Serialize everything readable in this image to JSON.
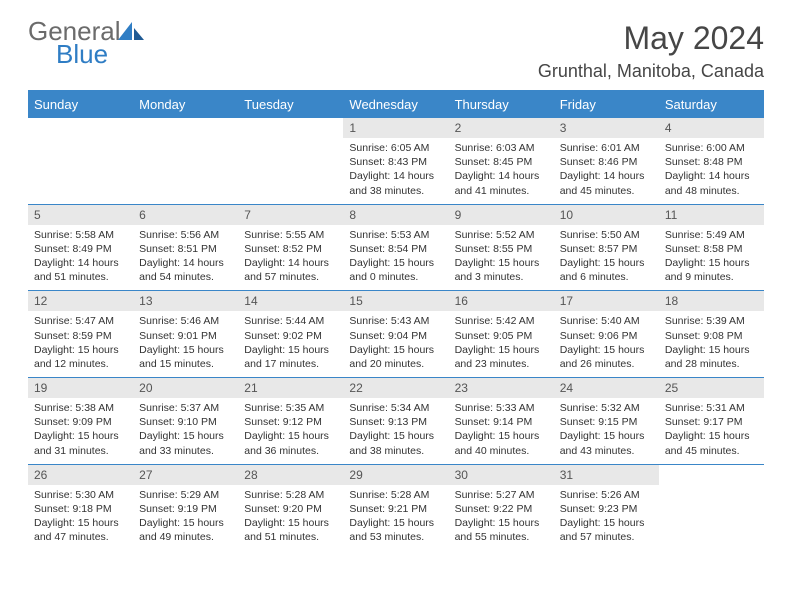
{
  "brand": {
    "part1": "General",
    "part2": "Blue"
  },
  "title": "May 2024",
  "location": "Grunthal, Manitoba, Canada",
  "colors": {
    "header_bg": "#3a86c8",
    "daynum_bg": "#e8e8e8",
    "text": "#333333",
    "title_text": "#464646"
  },
  "dayNames": [
    "Sunday",
    "Monday",
    "Tuesday",
    "Wednesday",
    "Thursday",
    "Friday",
    "Saturday"
  ],
  "weeks": [
    [
      {
        "num": "",
        "sunrise": "",
        "sunset": "",
        "daylight": ""
      },
      {
        "num": "",
        "sunrise": "",
        "sunset": "",
        "daylight": ""
      },
      {
        "num": "",
        "sunrise": "",
        "sunset": "",
        "daylight": ""
      },
      {
        "num": "1",
        "sunrise": "Sunrise: 6:05 AM",
        "sunset": "Sunset: 8:43 PM",
        "daylight": "Daylight: 14 hours and 38 minutes."
      },
      {
        "num": "2",
        "sunrise": "Sunrise: 6:03 AM",
        "sunset": "Sunset: 8:45 PM",
        "daylight": "Daylight: 14 hours and 41 minutes."
      },
      {
        "num": "3",
        "sunrise": "Sunrise: 6:01 AM",
        "sunset": "Sunset: 8:46 PM",
        "daylight": "Daylight: 14 hours and 45 minutes."
      },
      {
        "num": "4",
        "sunrise": "Sunrise: 6:00 AM",
        "sunset": "Sunset: 8:48 PM",
        "daylight": "Daylight: 14 hours and 48 minutes."
      }
    ],
    [
      {
        "num": "5",
        "sunrise": "Sunrise: 5:58 AM",
        "sunset": "Sunset: 8:49 PM",
        "daylight": "Daylight: 14 hours and 51 minutes."
      },
      {
        "num": "6",
        "sunrise": "Sunrise: 5:56 AM",
        "sunset": "Sunset: 8:51 PM",
        "daylight": "Daylight: 14 hours and 54 minutes."
      },
      {
        "num": "7",
        "sunrise": "Sunrise: 5:55 AM",
        "sunset": "Sunset: 8:52 PM",
        "daylight": "Daylight: 14 hours and 57 minutes."
      },
      {
        "num": "8",
        "sunrise": "Sunrise: 5:53 AM",
        "sunset": "Sunset: 8:54 PM",
        "daylight": "Daylight: 15 hours and 0 minutes."
      },
      {
        "num": "9",
        "sunrise": "Sunrise: 5:52 AM",
        "sunset": "Sunset: 8:55 PM",
        "daylight": "Daylight: 15 hours and 3 minutes."
      },
      {
        "num": "10",
        "sunrise": "Sunrise: 5:50 AM",
        "sunset": "Sunset: 8:57 PM",
        "daylight": "Daylight: 15 hours and 6 minutes."
      },
      {
        "num": "11",
        "sunrise": "Sunrise: 5:49 AM",
        "sunset": "Sunset: 8:58 PM",
        "daylight": "Daylight: 15 hours and 9 minutes."
      }
    ],
    [
      {
        "num": "12",
        "sunrise": "Sunrise: 5:47 AM",
        "sunset": "Sunset: 8:59 PM",
        "daylight": "Daylight: 15 hours and 12 minutes."
      },
      {
        "num": "13",
        "sunrise": "Sunrise: 5:46 AM",
        "sunset": "Sunset: 9:01 PM",
        "daylight": "Daylight: 15 hours and 15 minutes."
      },
      {
        "num": "14",
        "sunrise": "Sunrise: 5:44 AM",
        "sunset": "Sunset: 9:02 PM",
        "daylight": "Daylight: 15 hours and 17 minutes."
      },
      {
        "num": "15",
        "sunrise": "Sunrise: 5:43 AM",
        "sunset": "Sunset: 9:04 PM",
        "daylight": "Daylight: 15 hours and 20 minutes."
      },
      {
        "num": "16",
        "sunrise": "Sunrise: 5:42 AM",
        "sunset": "Sunset: 9:05 PM",
        "daylight": "Daylight: 15 hours and 23 minutes."
      },
      {
        "num": "17",
        "sunrise": "Sunrise: 5:40 AM",
        "sunset": "Sunset: 9:06 PM",
        "daylight": "Daylight: 15 hours and 26 minutes."
      },
      {
        "num": "18",
        "sunrise": "Sunrise: 5:39 AM",
        "sunset": "Sunset: 9:08 PM",
        "daylight": "Daylight: 15 hours and 28 minutes."
      }
    ],
    [
      {
        "num": "19",
        "sunrise": "Sunrise: 5:38 AM",
        "sunset": "Sunset: 9:09 PM",
        "daylight": "Daylight: 15 hours and 31 minutes."
      },
      {
        "num": "20",
        "sunrise": "Sunrise: 5:37 AM",
        "sunset": "Sunset: 9:10 PM",
        "daylight": "Daylight: 15 hours and 33 minutes."
      },
      {
        "num": "21",
        "sunrise": "Sunrise: 5:35 AM",
        "sunset": "Sunset: 9:12 PM",
        "daylight": "Daylight: 15 hours and 36 minutes."
      },
      {
        "num": "22",
        "sunrise": "Sunrise: 5:34 AM",
        "sunset": "Sunset: 9:13 PM",
        "daylight": "Daylight: 15 hours and 38 minutes."
      },
      {
        "num": "23",
        "sunrise": "Sunrise: 5:33 AM",
        "sunset": "Sunset: 9:14 PM",
        "daylight": "Daylight: 15 hours and 40 minutes."
      },
      {
        "num": "24",
        "sunrise": "Sunrise: 5:32 AM",
        "sunset": "Sunset: 9:15 PM",
        "daylight": "Daylight: 15 hours and 43 minutes."
      },
      {
        "num": "25",
        "sunrise": "Sunrise: 5:31 AM",
        "sunset": "Sunset: 9:17 PM",
        "daylight": "Daylight: 15 hours and 45 minutes."
      }
    ],
    [
      {
        "num": "26",
        "sunrise": "Sunrise: 5:30 AM",
        "sunset": "Sunset: 9:18 PM",
        "daylight": "Daylight: 15 hours and 47 minutes."
      },
      {
        "num": "27",
        "sunrise": "Sunrise: 5:29 AM",
        "sunset": "Sunset: 9:19 PM",
        "daylight": "Daylight: 15 hours and 49 minutes."
      },
      {
        "num": "28",
        "sunrise": "Sunrise: 5:28 AM",
        "sunset": "Sunset: 9:20 PM",
        "daylight": "Daylight: 15 hours and 51 minutes."
      },
      {
        "num": "29",
        "sunrise": "Sunrise: 5:28 AM",
        "sunset": "Sunset: 9:21 PM",
        "daylight": "Daylight: 15 hours and 53 minutes."
      },
      {
        "num": "30",
        "sunrise": "Sunrise: 5:27 AM",
        "sunset": "Sunset: 9:22 PM",
        "daylight": "Daylight: 15 hours and 55 minutes."
      },
      {
        "num": "31",
        "sunrise": "Sunrise: 5:26 AM",
        "sunset": "Sunset: 9:23 PM",
        "daylight": "Daylight: 15 hours and 57 minutes."
      },
      {
        "num": "",
        "sunrise": "",
        "sunset": "",
        "daylight": ""
      }
    ]
  ]
}
